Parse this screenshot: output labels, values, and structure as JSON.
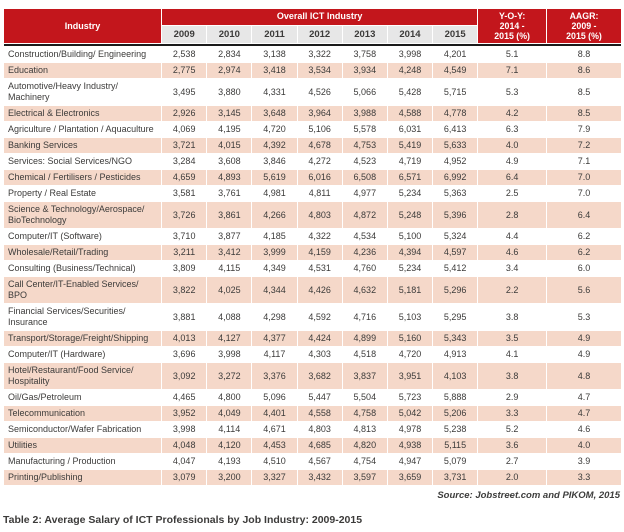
{
  "colors": {
    "header_red": "#c3161c",
    "row_pink": "#f5d8c9",
    "year_row_gray": "#e7e7e7",
    "text_dark": "#3c3b3a",
    "divider_black": "#1b1b1b",
    "header_text": "#ffffff"
  },
  "header": {
    "industry": "Industry",
    "overall": "Overall ICT Industry",
    "years": [
      "2009",
      "2010",
      "2011",
      "2012",
      "2013",
      "2014",
      "2015"
    ],
    "yoy_lines": [
      "Y-O-Y:",
      "2014 -",
      "2015 (%)"
    ],
    "aagr_lines": [
      "AAGR:",
      "2009 -",
      "2015 (%)"
    ]
  },
  "rows": [
    {
      "industry": "Construction/Building/ Engineering",
      "values": [
        "2,538",
        "2,834",
        "3,138",
        "3,322",
        "3,758",
        "3,998",
        "4,201"
      ],
      "yoy": "5.1",
      "aagr": "8.8"
    },
    {
      "industry": "Education",
      "values": [
        "2,775",
        "2,974",
        "3,418",
        "3,534",
        "3,934",
        "4,248",
        "4,549"
      ],
      "yoy": "7.1",
      "aagr": "8.6"
    },
    {
      "industry": "Automotive/Heavy Industry/ Machinery",
      "values": [
        "3,495",
        "3,880",
        "4,331",
        "4,526",
        "5,066",
        "5,428",
        "5,715"
      ],
      "yoy": "5.3",
      "aagr": "8.5"
    },
    {
      "industry": "Electrical & Electronics",
      "values": [
        "2,926",
        "3,145",
        "3,648",
        "3,964",
        "3,988",
        "4,588",
        "4,778"
      ],
      "yoy": "4.2",
      "aagr": "8.5"
    },
    {
      "industry": "Agriculture / Plantation / Aquaculture",
      "values": [
        "4,069",
        "4,195",
        "4,720",
        "5,106",
        "5,578",
        "6,031",
        "6,413"
      ],
      "yoy": "6.3",
      "aagr": "7.9"
    },
    {
      "industry": "Banking Services",
      "values": [
        "3,721",
        "4,015",
        "4,392",
        "4,678",
        "4,753",
        "5,419",
        "5,633"
      ],
      "yoy": "4.0",
      "aagr": "7.2"
    },
    {
      "industry": "Services: Social Services/NGO",
      "values": [
        "3,284",
        "3,608",
        "3,846",
        "4,272",
        "4,523",
        "4,719",
        "4,952"
      ],
      "yoy": "4.9",
      "aagr": "7.1"
    },
    {
      "industry": "Chemical / Fertilisers / Pesticides",
      "values": [
        "4,659",
        "4,893",
        "5,619",
        "6,016",
        "6,508",
        "6,571",
        "6,992"
      ],
      "yoy": "6.4",
      "aagr": "7.0"
    },
    {
      "industry": "Property / Real Estate",
      "values": [
        "3,581",
        "3,761",
        "4,981",
        "4,811",
        "4,977",
        "5,234",
        "5,363"
      ],
      "yoy": "2.5",
      "aagr": "7.0"
    },
    {
      "industry": "Science & Technology/Aerospace/ BioTechnology",
      "values": [
        "3,726",
        "3,861",
        "4,266",
        "4,803",
        "4,872",
        "5,248",
        "5,396"
      ],
      "yoy": "2.8",
      "aagr": "6.4"
    },
    {
      "industry": "Computer/IT (Software)",
      "values": [
        "3,710",
        "3,877",
        "4,185",
        "4,322",
        "4,534",
        "5,100",
        "5,324"
      ],
      "yoy": "4.4",
      "aagr": "6.2"
    },
    {
      "industry": "Wholesale/Retail/Trading",
      "values": [
        "3,211",
        "3,412",
        "3,999",
        "4,159",
        "4,236",
        "4,394",
        "4,597"
      ],
      "yoy": "4.6",
      "aagr": "6.2"
    },
    {
      "industry": "Consulting (Business/Technical)",
      "values": [
        "3,809",
        "4,115",
        "4,349",
        "4,531",
        "4,760",
        "5,234",
        "5,412"
      ],
      "yoy": "3.4",
      "aagr": "6.0"
    },
    {
      "industry": "Call Center/IT-Enabled Services/ BPO",
      "values": [
        "3,822",
        "4,025",
        "4,344",
        "4,426",
        "4,632",
        "5,181",
        "5,296"
      ],
      "yoy": "2.2",
      "aagr": "5.6"
    },
    {
      "industry": "Financial Services/Securities/ Insurance",
      "values": [
        "3,881",
        "4,088",
        "4,298",
        "4,592",
        "4,716",
        "5,103",
        "5,295"
      ],
      "yoy": "3.8",
      "aagr": "5.3"
    },
    {
      "industry": "Transport/Storage/Freight/Shipping",
      "values": [
        "4,013",
        "4,127",
        "4,377",
        "4,424",
        "4,899",
        "5,160",
        "5,343"
      ],
      "yoy": "3.5",
      "aagr": "4.9"
    },
    {
      "industry": "Computer/IT (Hardware)",
      "values": [
        "3,696",
        "3,998",
        "4,117",
        "4,303",
        "4,518",
        "4,720",
        "4,913"
      ],
      "yoy": "4.1",
      "aagr": "4.9"
    },
    {
      "industry": "Hotel/Restaurant/Food Service/ Hospitality",
      "values": [
        "3,092",
        "3,272",
        "3,376",
        "3,682",
        "3,837",
        "3,951",
        "4,103"
      ],
      "yoy": "3.8",
      "aagr": "4.8"
    },
    {
      "industry": "Oil/Gas/Petroleum",
      "values": [
        "4,465",
        "4,800",
        "5,096",
        "5,447",
        "5,504",
        "5,723",
        "5,888"
      ],
      "yoy": "2.9",
      "aagr": "4.7"
    },
    {
      "industry": "Telecommunication",
      "values": [
        "3,952",
        "4,049",
        "4,401",
        "4,558",
        "4,758",
        "5,042",
        "5,206"
      ],
      "yoy": "3.3",
      "aagr": "4.7"
    },
    {
      "industry": "Semiconductor/Wafer Fabrication",
      "values": [
        "3,998",
        "4,114",
        "4,671",
        "4,803",
        "4,813",
        "4,978",
        "5,238"
      ],
      "yoy": "5.2",
      "aagr": "4.6"
    },
    {
      "industry": "Utilities",
      "values": [
        "4,048",
        "4,120",
        "4,453",
        "4,685",
        "4,820",
        "4,938",
        "5,115"
      ],
      "yoy": "3.6",
      "aagr": "4.0"
    },
    {
      "industry": "Manufacturing / Production",
      "values": [
        "4,047",
        "4,193",
        "4,510",
        "4,567",
        "4,754",
        "4,947",
        "5,079"
      ],
      "yoy": "2.7",
      "aagr": "3.9"
    },
    {
      "industry": "Printing/Publishing",
      "values": [
        "3,079",
        "3,200",
        "3,327",
        "3,432",
        "3,597",
        "3,659",
        "3,731"
      ],
      "yoy": "2.0",
      "aagr": "3.3"
    }
  ],
  "source_note": "Source: Jobstreet.com and PIKOM, 2015",
  "caption": "Table 2: Average Salary of ICT Professionals by Job Industry: 2009-2015"
}
